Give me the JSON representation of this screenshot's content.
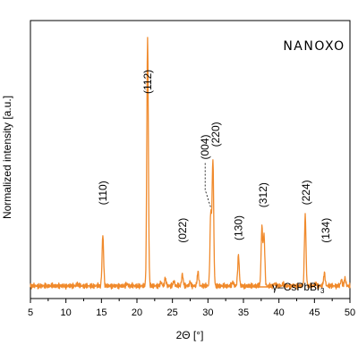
{
  "chart_data": {
    "type": "line",
    "xlabel": "2Θ [°]",
    "ylabel": "Normalized intensity [a.u.]",
    "xlim": [
      5,
      50
    ],
    "ylim": [
      -0.05,
      1.05
    ],
    "x_ticks": [
      5,
      10,
      15,
      20,
      25,
      30,
      35,
      40,
      45,
      50
    ],
    "grid": false,
    "legend_position": "bottom-right",
    "brand_label": "nanoxo",
    "series": [
      {
        "name": "γ–CsPbBr3",
        "legend_base": "γ–CsPbBr",
        "legend_sub": "3",
        "color": "#F08A2C",
        "baseline": 0.0,
        "peaks": [
          {
            "x": 11.6,
            "y": 0.008
          },
          {
            "x": 15.2,
            "y": 0.2
          },
          {
            "x": 18.6,
            "y": 0.008
          },
          {
            "x": 21.5,
            "y": 0.98
          },
          {
            "x": 23.4,
            "y": 0.015
          },
          {
            "x": 24.0,
            "y": 0.03
          },
          {
            "x": 25.2,
            "y": 0.02
          },
          {
            "x": 26.4,
            "y": 0.045
          },
          {
            "x": 27.5,
            "y": 0.015
          },
          {
            "x": 28.6,
            "y": 0.055
          },
          {
            "x": 30.4,
            "y": 0.29
          },
          {
            "x": 30.7,
            "y": 0.5
          },
          {
            "x": 33.5,
            "y": 0.015
          },
          {
            "x": 34.3,
            "y": 0.12
          },
          {
            "x": 37.6,
            "y": 0.23
          },
          {
            "x": 37.9,
            "y": 0.2
          },
          {
            "x": 39.4,
            "y": 0.01
          },
          {
            "x": 40.6,
            "y": 0.008
          },
          {
            "x": 43.7,
            "y": 0.28
          },
          {
            "x": 45.2,
            "y": 0.01
          },
          {
            "x": 46.4,
            "y": 0.05
          },
          {
            "x": 48.8,
            "y": 0.025
          },
          {
            "x": 49.3,
            "y": 0.03
          }
        ]
      }
    ],
    "annotations": [
      {
        "label": "(110)",
        "x": 15.2,
        "y": 0.32
      },
      {
        "label": "(112)",
        "x": 21.5,
        "y": 0.76
      },
      {
        "label": "(022)",
        "x": 26.4,
        "y": 0.17
      },
      {
        "label": "(004)",
        "x": 29.6,
        "y": 0.5
      },
      {
        "label": "(220)",
        "x": 31.1,
        "y": 0.55
      },
      {
        "label": "(130)",
        "x": 34.3,
        "y": 0.18
      },
      {
        "label": "(312)",
        "x": 37.8,
        "y": 0.31
      },
      {
        "label": "(224)",
        "x": 43.8,
        "y": 0.32
      },
      {
        "label": "(134)",
        "x": 46.6,
        "y": 0.17
      }
    ]
  }
}
